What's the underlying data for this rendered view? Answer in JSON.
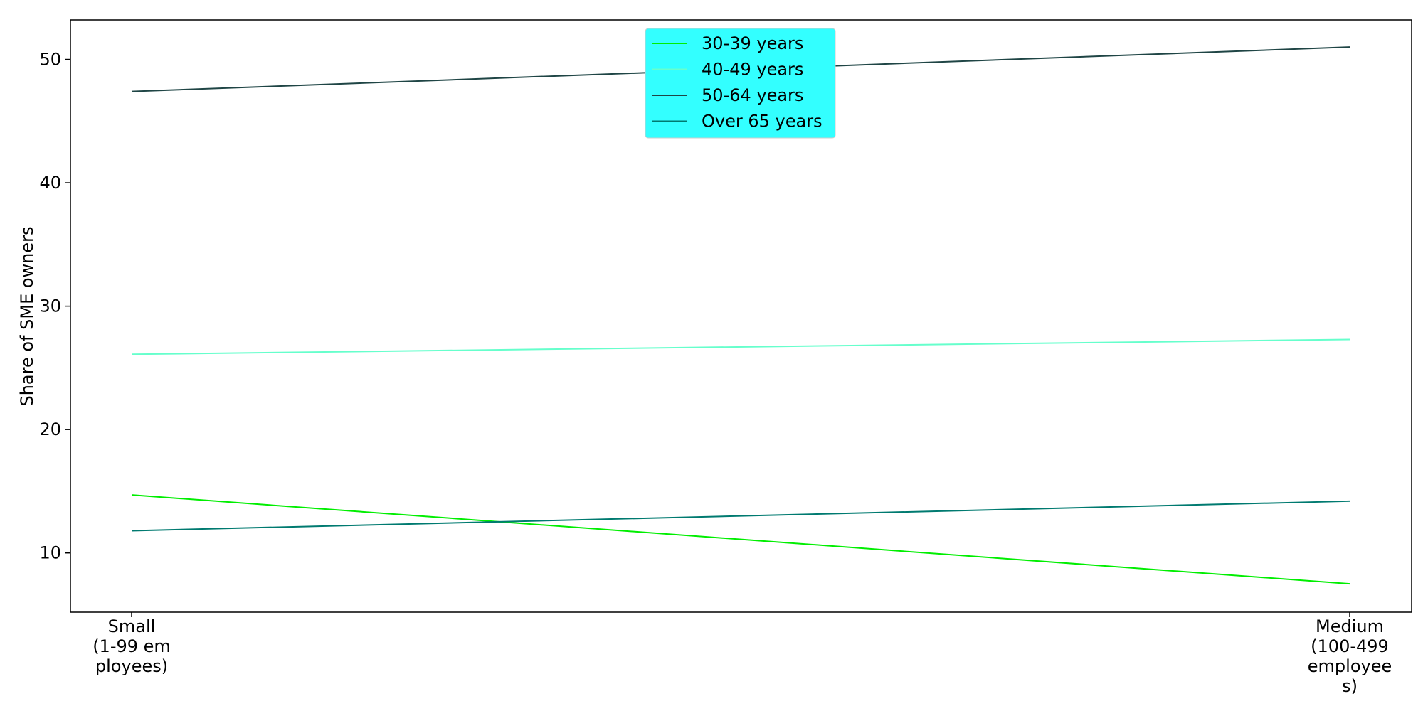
{
  "chart_data": {
    "type": "line",
    "title": "",
    "xlabel": "",
    "ylabel": "Share of SME owners",
    "categories": [
      [
        "Small",
        "(1-99 em",
        "ployees)"
      ],
      [
        "Medium",
        "(100-499",
        "employee",
        "s)"
      ]
    ],
    "ylim": [
      5.2,
      53.2
    ],
    "yticks": [
      10,
      20,
      30,
      40,
      50
    ],
    "grid": false,
    "legend_position": "top-center",
    "legend_background": "#33ffff",
    "series": [
      {
        "name": "30-39 years",
        "values": [
          14.7,
          7.5
        ],
        "color": "#00ee00"
      },
      {
        "name": "40-49 years",
        "values": [
          26.1,
          27.3
        ],
        "color": "#66ffcc"
      },
      {
        "name": "50-64 years",
        "values": [
          47.4,
          51.0
        ],
        "color": "#1f4545"
      },
      {
        "name": "Over 65 years",
        "values": [
          11.8,
          14.2
        ],
        "color": "#007a70"
      }
    ]
  }
}
